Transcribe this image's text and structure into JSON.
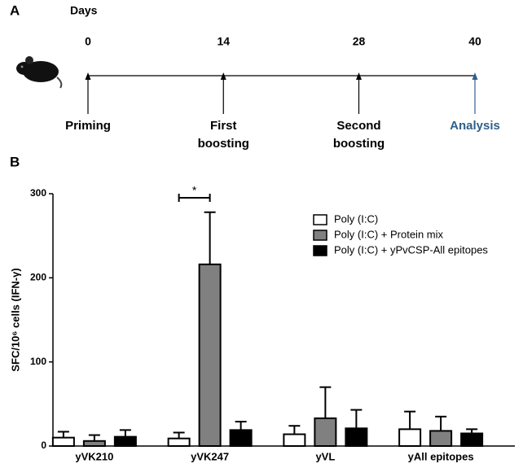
{
  "panel_labels": [
    "A",
    "B"
  ],
  "timeline": {
    "unit_label": "Days",
    "events": [
      {
        "day": 0,
        "lines": [
          "Priming"
        ],
        "color": "#000000"
      },
      {
        "day": 14,
        "lines": [
          "First",
          "boosting"
        ],
        "color": "#000000"
      },
      {
        "day": 28,
        "lines": [
          "Second",
          "boosting"
        ],
        "color": "#000000"
      },
      {
        "day": 40,
        "lines": [
          "Analysis"
        ],
        "color": "#2f5f8a"
      }
    ]
  },
  "chart_data": {
    "type": "bar",
    "y_label": "SFC/10⁶ cells (IFN-γ)",
    "categories": [
      "yVK210",
      "yVK247",
      "yVL",
      "yAll epitopes"
    ],
    "series": [
      {
        "name": "Poly (I:C)",
        "color": "#ffffff",
        "values": [
          10,
          9,
          14,
          20
        ],
        "errors": [
          7,
          7,
          10,
          21
        ]
      },
      {
        "name": "Poly (I:C) + Protein mix",
        "color": "#808080",
        "values": [
          6,
          216,
          33,
          18
        ],
        "errors": [
          7,
          62,
          37,
          17
        ]
      },
      {
        "name": "Poly (I:C) + yPvCSP-All epitopes",
        "color": "#000000",
        "values": [
          11,
          19,
          21,
          15
        ],
        "errors": [
          8,
          10,
          22,
          5
        ]
      }
    ],
    "ylim": [
      0,
      300
    ],
    "yticks": [
      0,
      100,
      200,
      300
    ],
    "annotation": {
      "text": "*",
      "category": 1
    }
  }
}
